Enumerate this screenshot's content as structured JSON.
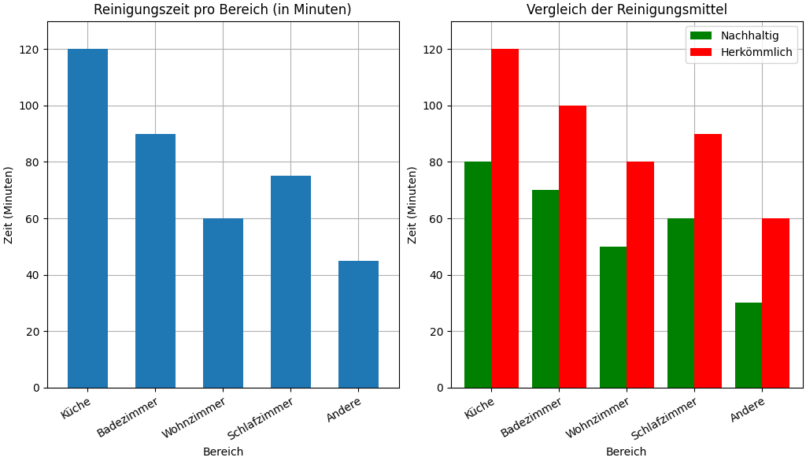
{
  "chart_data": [
    {
      "type": "bar",
      "title": "Reinigungszeit pro Bereich (in Minuten)",
      "x_label": "Bereich",
      "y_label": "Zeit (Minuten)",
      "categories": [
        "Küche",
        "Badezimmer",
        "Wohnzimmer",
        "Schlafzimmer",
        "Andere"
      ],
      "values": [
        120,
        90,
        60,
        75,
        45
      ],
      "ylim": [
        0,
        130
      ],
      "yticks": [
        0,
        20,
        40,
        60,
        80,
        100,
        120
      ],
      "grid": true
    },
    {
      "type": "bar",
      "title": "Vergleich der Reinigungsmittel",
      "x_label": "Bereich",
      "y_label": "Zeit (Minuten)",
      "categories": [
        "Küche",
        "Badezimmer",
        "Wohnzimmer",
        "Schlafzimmer",
        "Andere"
      ],
      "series": [
        {
          "name": "Nachhaltig",
          "color": "#008000",
          "values": [
            80,
            70,
            50,
            60,
            30
          ]
        },
        {
          "name": "Herkömmlich",
          "color": "#ff0000",
          "values": [
            120,
            100,
            80,
            90,
            60
          ]
        }
      ],
      "ylim": [
        0,
        130
      ],
      "yticks": [
        0,
        20,
        40,
        60,
        80,
        100,
        120
      ],
      "grid": true,
      "legend": "upper right"
    }
  ]
}
